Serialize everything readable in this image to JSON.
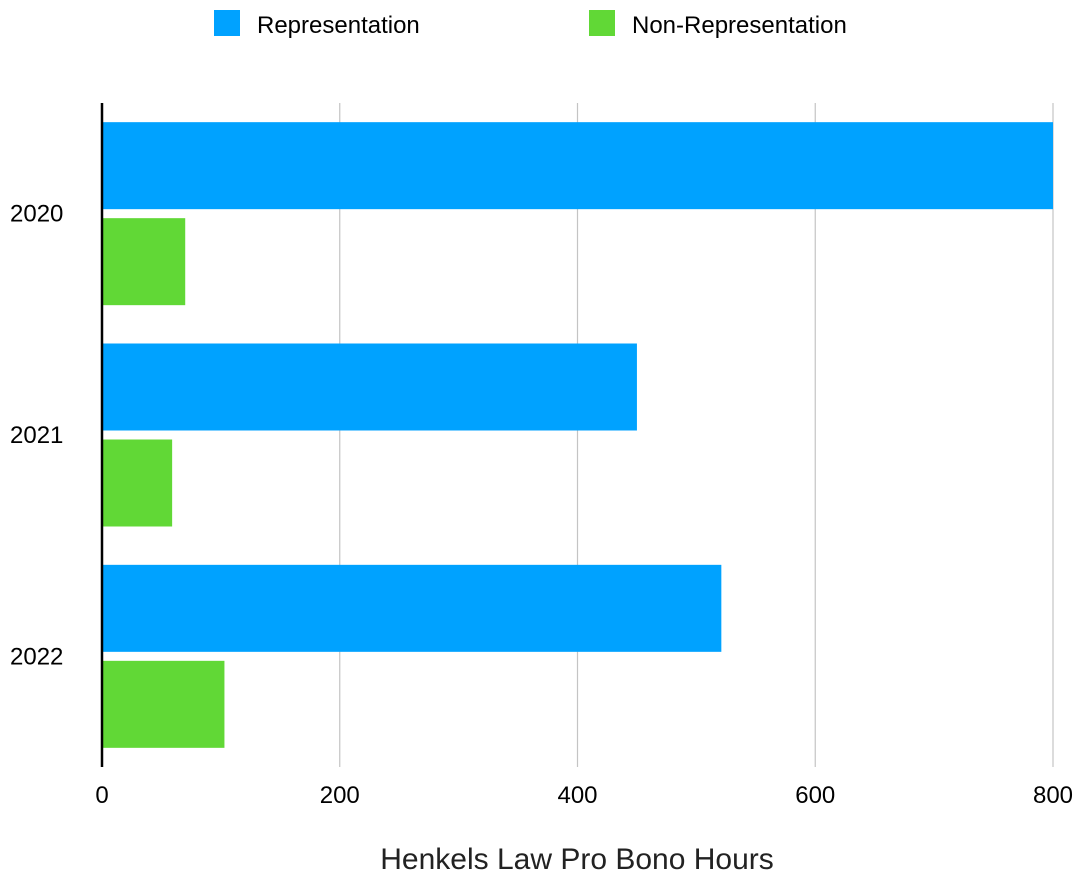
{
  "chart_data": {
    "type": "bar",
    "orientation": "horizontal",
    "title": "",
    "xlabel": "Henkels Law Pro Bono Hours",
    "ylabel": "",
    "categories": [
      "2020",
      "2021",
      "2022"
    ],
    "series": [
      {
        "name": "Representation",
        "color": "#00a2ff",
        "values": [
          800,
          450,
          521
        ]
      },
      {
        "name": "Non-Representation",
        "color": "#61d836",
        "values": [
          70,
          59,
          103
        ]
      }
    ],
    "xlim": [
      0,
      800
    ],
    "xticks": [
      0,
      200,
      400,
      600,
      800
    ],
    "grid": true,
    "legend_position": "top-center"
  }
}
